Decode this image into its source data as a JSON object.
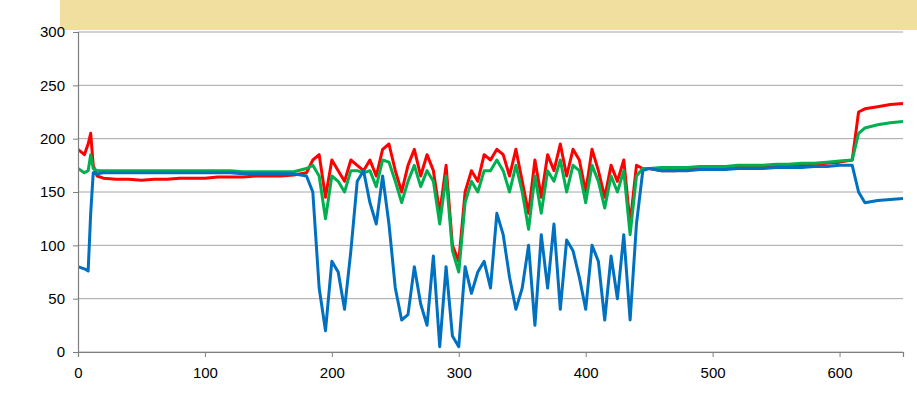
{
  "chart_data": {
    "type": "line",
    "x": [
      0,
      5,
      8,
      10,
      12,
      15,
      20,
      30,
      40,
      50,
      60,
      70,
      80,
      90,
      100,
      110,
      120,
      130,
      140,
      150,
      160,
      170,
      180,
      185,
      190,
      195,
      200,
      205,
      210,
      215,
      220,
      225,
      230,
      235,
      240,
      245,
      250,
      255,
      260,
      265,
      270,
      275,
      280,
      285,
      290,
      295,
      300,
      305,
      310,
      315,
      320,
      325,
      330,
      335,
      340,
      345,
      350,
      355,
      360,
      365,
      370,
      375,
      380,
      385,
      390,
      395,
      400,
      405,
      410,
      415,
      420,
      425,
      430,
      435,
      440,
      445,
      450,
      460,
      470,
      480,
      490,
      500,
      510,
      520,
      530,
      540,
      550,
      560,
      570,
      580,
      590,
      600,
      610,
      615,
      620,
      630,
      640,
      650
    ],
    "series": [
      {
        "color": "#ff0000",
        "values": [
          190,
          185,
          195,
          205,
          175,
          165,
          163,
          162,
          162,
          161,
          162,
          162,
          163,
          163,
          163,
          164,
          164,
          164,
          165,
          165,
          165,
          166,
          168,
          180,
          185,
          145,
          180,
          170,
          160,
          180,
          175,
          170,
          180,
          165,
          190,
          195,
          170,
          150,
          175,
          190,
          165,
          185,
          170,
          130,
          175,
          100,
          85,
          150,
          170,
          160,
          185,
          180,
          190,
          185,
          165,
          190,
          160,
          130,
          180,
          145,
          185,
          170,
          195,
          165,
          190,
          180,
          150,
          190,
          170,
          145,
          175,
          160,
          180,
          120,
          175,
          172,
          172,
          170,
          170,
          171,
          171,
          172,
          172,
          173,
          173,
          174,
          174,
          175,
          175,
          176,
          177,
          178,
          180,
          225,
          228,
          230,
          232,
          233
        ]
      },
      {
        "color": "#00b050",
        "values": [
          172,
          168,
          170,
          185,
          172,
          170,
          170,
          170,
          170,
          170,
          170,
          170,
          170,
          170,
          170,
          170,
          170,
          169,
          169,
          169,
          169,
          169,
          172,
          175,
          165,
          125,
          165,
          160,
          150,
          170,
          170,
          168,
          170,
          155,
          180,
          178,
          160,
          140,
          160,
          175,
          155,
          170,
          160,
          120,
          165,
          95,
          75,
          140,
          160,
          150,
          170,
          170,
          180,
          170,
          150,
          175,
          150,
          115,
          165,
          130,
          170,
          160,
          180,
          150,
          175,
          170,
          140,
          175,
          160,
          135,
          165,
          150,
          170,
          110,
          165,
          172,
          172,
          173,
          173,
          173,
          174,
          174,
          174,
          175,
          175,
          175,
          176,
          176,
          177,
          177,
          178,
          179,
          180,
          205,
          210,
          213,
          215,
          216
        ]
      },
      {
        "color": "#0070c0",
        "values": [
          80,
          78,
          76,
          130,
          168,
          167,
          168,
          168,
          168,
          168,
          168,
          168,
          168,
          168,
          168,
          168,
          168,
          167,
          167,
          167,
          167,
          167,
          165,
          150,
          60,
          20,
          85,
          75,
          40,
          95,
          160,
          170,
          140,
          120,
          165,
          120,
          60,
          30,
          35,
          80,
          45,
          25,
          90,
          5,
          80,
          15,
          5,
          80,
          55,
          75,
          85,
          60,
          130,
          110,
          70,
          40,
          60,
          100,
          25,
          110,
          60,
          120,
          40,
          105,
          95,
          70,
          40,
          100,
          85,
          30,
          90,
          50,
          110,
          30,
          120,
          170,
          172,
          170,
          170,
          170,
          171,
          171,
          171,
          172,
          172,
          172,
          173,
          173,
          173,
          174,
          174,
          175,
          175,
          150,
          140,
          142,
          143,
          144
        ]
      }
    ],
    "xlim": [
      0,
      650
    ],
    "xticks": [
      0,
      100,
      200,
      300,
      400,
      500,
      600
    ],
    "ylim": [
      0,
      300
    ],
    "yticks": [
      0,
      50,
      100,
      150,
      200,
      250,
      300
    ],
    "grid": true
  }
}
